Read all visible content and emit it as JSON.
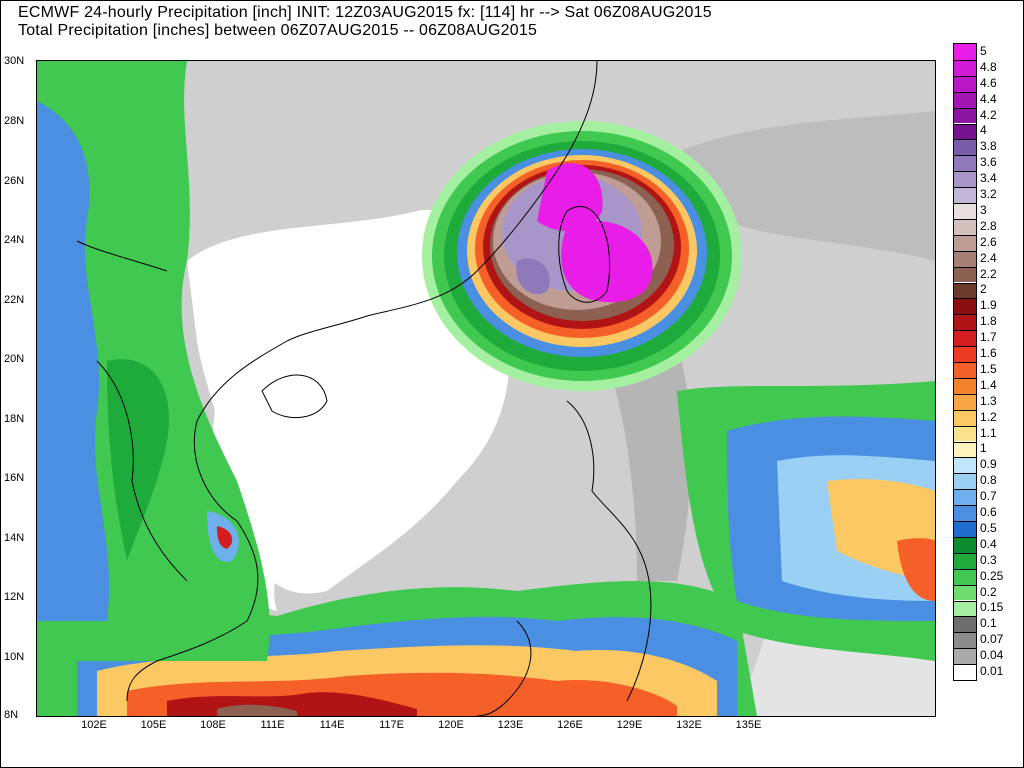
{
  "title_line1": "ECMWF 24-hourly Precipitation [inch] INIT: 12Z03AUG2015 fx: [114] hr --> Sat 06Z08AUG2015",
  "title_line2": "Total Precipitation [inches] between 06Z07AUG2015 -- 06Z08AUG2015",
  "lat_labels": [
    "30N",
    "28N",
    "26N",
    "24N",
    "22N",
    "20N",
    "18N",
    "16N",
    "14N",
    "12N",
    "10N",
    "8N"
  ],
  "lon_labels": [
    "102E",
    "105E",
    "108E",
    "111E",
    "114E",
    "117E",
    "120E",
    "123E",
    "126E",
    "129E",
    "132E",
    "135E"
  ],
  "legend": [
    {
      "label": "5",
      "color": "#e81ee8"
    },
    {
      "label": "4.8",
      "color": "#d11ad8"
    },
    {
      "label": "4.6",
      "color": "#ba18c6"
    },
    {
      "label": "4.4",
      "color": "#a316b4"
    },
    {
      "label": "4.2",
      "color": "#8c14a2"
    },
    {
      "label": "4",
      "color": "#761290"
    },
    {
      "label": "3.8",
      "color": "#7a5cac"
    },
    {
      "label": "3.6",
      "color": "#9079bb"
    },
    {
      "label": "3.4",
      "color": "#a896c9"
    },
    {
      "label": "3.2",
      "color": "#c1b5d8"
    },
    {
      "label": "3",
      "color": "#e8dedc"
    },
    {
      "label": "2.8",
      "color": "#d5c1bc"
    },
    {
      "label": "2.6",
      "color": "#bf9d94"
    },
    {
      "label": "2.4",
      "color": "#a67e73"
    },
    {
      "label": "2.2",
      "color": "#8c6152"
    },
    {
      "label": "2",
      "color": "#6b3a2a"
    },
    {
      "label": "1.9",
      "color": "#8c0f0f"
    },
    {
      "label": "1.8",
      "color": "#b01414"
    },
    {
      "label": "1.7",
      "color": "#d21e1e"
    },
    {
      "label": "1.6",
      "color": "#ee3c23"
    },
    {
      "label": "1.5",
      "color": "#f55f28"
    },
    {
      "label": "1.4",
      "color": "#f7822d"
    },
    {
      "label": "1.3",
      "color": "#f9a546"
    },
    {
      "label": "1.2",
      "color": "#fbc864"
    },
    {
      "label": "1.1",
      "color": "#fde28c"
    },
    {
      "label": "1",
      "color": "#fff4bb"
    },
    {
      "label": "0.9",
      "color": "#bfe6fa"
    },
    {
      "label": "0.8",
      "color": "#9bd0f5"
    },
    {
      "label": "0.7",
      "color": "#6eb0ee"
    },
    {
      "label": "0.6",
      "color": "#4a8fe2"
    },
    {
      "label": "0.5",
      "color": "#1e6ed2"
    },
    {
      "label": "0.4",
      "color": "#0c8c2e"
    },
    {
      "label": "0.3",
      "color": "#1fab3c"
    },
    {
      "label": "0.25",
      "color": "#40c850"
    },
    {
      "label": "0.2",
      "color": "#6edd6e"
    },
    {
      "label": "0.15",
      "color": "#a4f0a0"
    },
    {
      "label": "0.1",
      "color": "#6e6e6e"
    },
    {
      "label": "0.07",
      "color": "#8c8c8c"
    },
    {
      "label": "0.04",
      "color": "#aaaaaa"
    },
    {
      "label": "0.01",
      "color": "#ffffff"
    }
  ]
}
